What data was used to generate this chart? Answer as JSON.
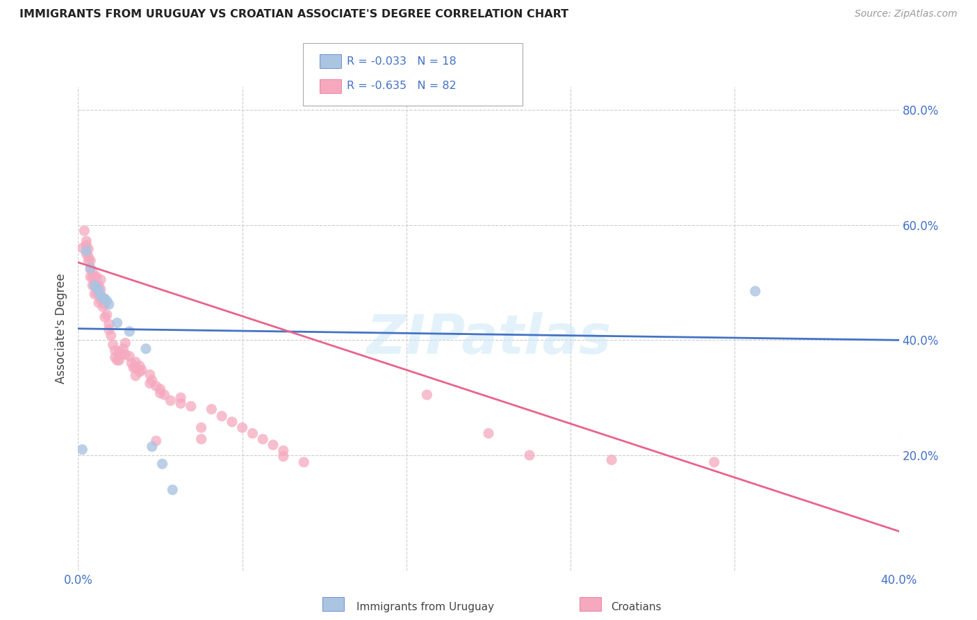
{
  "title": "IMMIGRANTS FROM URUGUAY VS CROATIAN ASSOCIATE'S DEGREE CORRELATION CHART",
  "source": "Source: ZipAtlas.com",
  "ylabel": "Associate's Degree",
  "x_min": 0.0,
  "x_max": 0.4,
  "y_min": 0.0,
  "y_max": 0.84,
  "ytick_values": [
    0.0,
    0.2,
    0.4,
    0.6,
    0.8
  ],
  "ytick_labels": [
    "",
    "20.0%",
    "40.0%",
    "60.0%",
    "80.0%"
  ],
  "xtick_values": [
    0.0,
    0.08,
    0.16,
    0.24,
    0.32,
    0.4
  ],
  "xtick_labels": [
    "0.0%",
    "",
    "",
    "",
    "",
    "40.0%"
  ],
  "legend_r1": "R = -0.033",
  "legend_n1": "N = 18",
  "legend_r2": "R = -0.635",
  "legend_n2": "N = 82",
  "color_blue": "#aac4e2",
  "color_pink": "#f5a8be",
  "line_blue": "#4472c4",
  "line_pink": "#e8638c",
  "watermark": "ZIPatlas",
  "uruguay_points": [
    [
      0.004,
      0.555
    ],
    [
      0.006,
      0.525
    ],
    [
      0.008,
      0.495
    ],
    [
      0.009,
      0.49
    ],
    [
      0.01,
      0.487
    ],
    [
      0.011,
      0.478
    ],
    [
      0.012,
      0.473
    ],
    [
      0.013,
      0.472
    ],
    [
      0.014,
      0.468
    ],
    [
      0.015,
      0.462
    ],
    [
      0.019,
      0.43
    ],
    [
      0.025,
      0.415
    ],
    [
      0.033,
      0.385
    ],
    [
      0.036,
      0.215
    ],
    [
      0.041,
      0.185
    ],
    [
      0.046,
      0.14
    ],
    [
      0.33,
      0.485
    ],
    [
      0.002,
      0.21
    ]
  ],
  "croatian_points": [
    [
      0.002,
      0.56
    ],
    [
      0.003,
      0.59
    ],
    [
      0.004,
      0.565
    ],
    [
      0.004,
      0.55
    ],
    [
      0.004,
      0.572
    ],
    [
      0.005,
      0.558
    ],
    [
      0.005,
      0.538
    ],
    [
      0.005,
      0.545
    ],
    [
      0.006,
      0.538
    ],
    [
      0.006,
      0.523
    ],
    [
      0.006,
      0.51
    ],
    [
      0.007,
      0.52
    ],
    [
      0.007,
      0.508
    ],
    [
      0.007,
      0.495
    ],
    [
      0.008,
      0.51
    ],
    [
      0.008,
      0.497
    ],
    [
      0.008,
      0.48
    ],
    [
      0.009,
      0.51
    ],
    [
      0.009,
      0.495
    ],
    [
      0.009,
      0.482
    ],
    [
      0.01,
      0.495
    ],
    [
      0.01,
      0.48
    ],
    [
      0.01,
      0.465
    ],
    [
      0.011,
      0.505
    ],
    [
      0.011,
      0.488
    ],
    [
      0.011,
      0.47
    ],
    [
      0.012,
      0.472
    ],
    [
      0.012,
      0.458
    ],
    [
      0.013,
      0.462
    ],
    [
      0.013,
      0.44
    ],
    [
      0.014,
      0.444
    ],
    [
      0.015,
      0.428
    ],
    [
      0.015,
      0.418
    ],
    [
      0.016,
      0.408
    ],
    [
      0.017,
      0.392
    ],
    [
      0.018,
      0.382
    ],
    [
      0.018,
      0.37
    ],
    [
      0.019,
      0.365
    ],
    [
      0.02,
      0.38
    ],
    [
      0.02,
      0.365
    ],
    [
      0.021,
      0.375
    ],
    [
      0.022,
      0.385
    ],
    [
      0.023,
      0.395
    ],
    [
      0.023,
      0.375
    ],
    [
      0.025,
      0.372
    ],
    [
      0.026,
      0.36
    ],
    [
      0.027,
      0.352
    ],
    [
      0.028,
      0.362
    ],
    [
      0.028,
      0.352
    ],
    [
      0.028,
      0.338
    ],
    [
      0.03,
      0.355
    ],
    [
      0.03,
      0.345
    ],
    [
      0.031,
      0.348
    ],
    [
      0.035,
      0.34
    ],
    [
      0.035,
      0.325
    ],
    [
      0.036,
      0.33
    ],
    [
      0.038,
      0.32
    ],
    [
      0.038,
      0.225
    ],
    [
      0.04,
      0.315
    ],
    [
      0.04,
      0.308
    ],
    [
      0.042,
      0.305
    ],
    [
      0.045,
      0.295
    ],
    [
      0.05,
      0.3
    ],
    [
      0.05,
      0.29
    ],
    [
      0.055,
      0.285
    ],
    [
      0.06,
      0.248
    ],
    [
      0.06,
      0.228
    ],
    [
      0.065,
      0.28
    ],
    [
      0.07,
      0.268
    ],
    [
      0.075,
      0.258
    ],
    [
      0.08,
      0.248
    ],
    [
      0.085,
      0.238
    ],
    [
      0.09,
      0.228
    ],
    [
      0.095,
      0.218
    ],
    [
      0.1,
      0.208
    ],
    [
      0.1,
      0.198
    ],
    [
      0.11,
      0.188
    ],
    [
      0.17,
      0.305
    ],
    [
      0.2,
      0.238
    ],
    [
      0.22,
      0.2
    ],
    [
      0.26,
      0.192
    ],
    [
      0.31,
      0.188
    ]
  ],
  "blue_line_x": [
    0.0,
    0.4
  ],
  "blue_line_y": [
    0.42,
    0.4
  ],
  "pink_line_x": [
    0.0,
    0.4
  ],
  "pink_line_y": [
    0.535,
    0.068
  ]
}
